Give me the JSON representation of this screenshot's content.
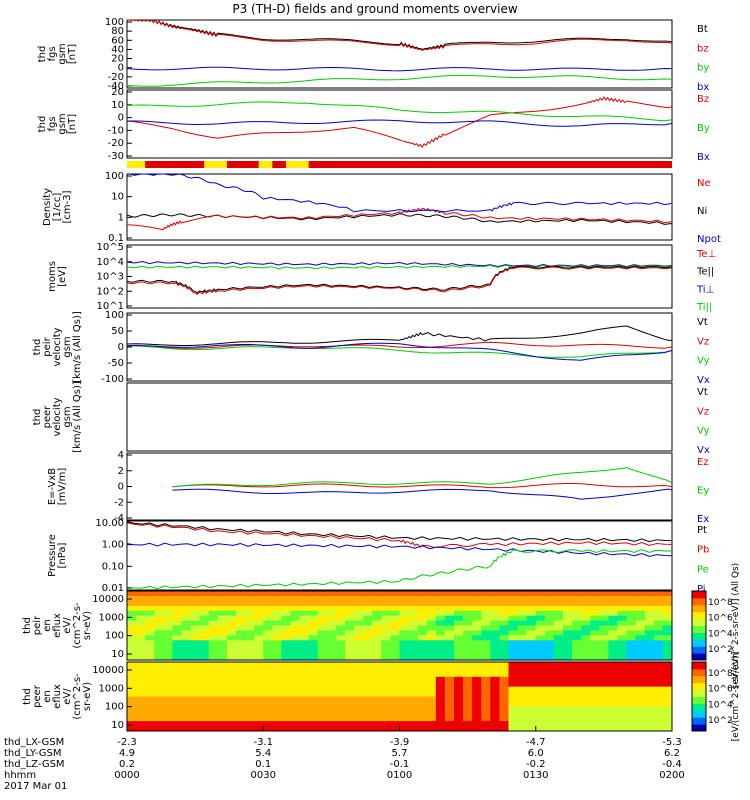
{
  "title": "P3 (TH-D) fields and ground moments overview",
  "colors": {
    "black": "#000000",
    "red": "#e00000",
    "green": "#00cc00",
    "blue": "#0000cc",
    "yellow": "#ffee00"
  },
  "date_label": "2017 Mar 01",
  "chart_data": [
    {
      "type": "line",
      "ylabel": [
        "thd",
        "fgs",
        "gsm",
        "[nT]"
      ],
      "yticks": [
        "100",
        "80",
        "60",
        "40",
        "20",
        "0",
        "-20",
        "-40"
      ],
      "ylim": [
        -40,
        100
      ],
      "legend": [
        {
          "name": "Bt",
          "color": "black"
        },
        {
          "name": "bz",
          "color": "red"
        },
        {
          "name": "by",
          "color": "green"
        },
        {
          "name": "bx",
          "color": "blue"
        }
      ],
      "series": [
        {
          "name": "Bt",
          "color": "black",
          "x": [
            0,
            5,
            10,
            15,
            20,
            30,
            40,
            50,
            60,
            65,
            70,
            80,
            90,
            100,
            110,
            120
          ],
          "y": [
            100,
            100,
            88,
            80,
            70,
            62,
            60,
            57,
            52,
            40,
            48,
            55,
            56,
            60,
            62,
            55
          ]
        },
        {
          "name": "bz",
          "color": "red",
          "x": [
            0,
            5,
            10,
            15,
            20,
            30,
            40,
            50,
            60,
            65,
            70,
            80,
            90,
            100,
            110,
            120
          ],
          "y": [
            100,
            100,
            86,
            78,
            68,
            60,
            57,
            55,
            50,
            38,
            45,
            52,
            52,
            58,
            60,
            52
          ]
        },
        {
          "name": "by",
          "color": "green",
          "x": [
            0,
            20,
            40,
            60,
            80,
            100,
            120
          ],
          "y": [
            -35,
            -30,
            -25,
            -20,
            -15,
            -18,
            -22
          ]
        },
        {
          "name": "bx",
          "color": "blue",
          "x": [
            0,
            20,
            40,
            60,
            80,
            100,
            120
          ],
          "y": [
            0,
            0,
            0,
            -2,
            0,
            -2,
            0
          ]
        }
      ]
    },
    {
      "type": "line",
      "ylabel": [
        "thd",
        "fgs",
        "gsm",
        "[nT]"
      ],
      "yticks": [
        "20",
        "10",
        "0",
        "-10",
        "-20",
        "-30"
      ],
      "ylim": [
        -35,
        22
      ],
      "legend": [
        {
          "name": "Bz",
          "color": "red"
        },
        {
          "name": "By",
          "color": "green"
        },
        {
          "name": "Bx",
          "color": "blue"
        }
      ],
      "series": [
        {
          "name": "Bz",
          "color": "red",
          "x": [
            0,
            10,
            20,
            30,
            40,
            50,
            60,
            65,
            70,
            80,
            90,
            100,
            105,
            110,
            120
          ],
          "y": [
            -5,
            -10,
            -18,
            -15,
            -12,
            -10,
            -20,
            -25,
            -15,
            0,
            5,
            10,
            15,
            12,
            8
          ]
        },
        {
          "name": "By",
          "color": "green",
          "x": [
            0,
            20,
            40,
            60,
            80,
            100,
            120
          ],
          "y": [
            8,
            10,
            12,
            5,
            3,
            0,
            -3
          ]
        },
        {
          "name": "Bx",
          "color": "blue",
          "x": [
            0,
            20,
            40,
            60,
            80,
            100,
            120
          ],
          "y": [
            -5,
            -6,
            -5,
            -4,
            -5,
            -8,
            -6
          ]
        }
      ]
    },
    {
      "type": "line",
      "ylabel": [
        "Density",
        "[1/cc]",
        "[cm-3]"
      ],
      "yticks": [
        "100",
        "10",
        "1",
        "0.1"
      ],
      "ylim": [
        0.05,
        200
      ],
      "log": true,
      "legend": [
        {
          "name": "Ne",
          "color": "red"
        },
        {
          "name": "Ni",
          "color": "black"
        },
        {
          "name": "Npot",
          "color": "blue"
        }
      ],
      "series": [
        {
          "name": "Ni",
          "color": "black",
          "x": [
            0,
            10,
            20,
            40,
            60,
            70,
            80,
            100,
            120
          ],
          "y": [
            1,
            1.2,
            1,
            0.7,
            1.2,
            1.0,
            0.5,
            0.6,
            0.4
          ]
        },
        {
          "name": "Ne",
          "color": "red",
          "x": [
            0,
            8,
            12,
            20,
            40,
            60,
            65,
            70,
            80,
            100,
            120
          ],
          "y": [
            0.3,
            0.2,
            0.5,
            1,
            0.8,
            1.5,
            2.5,
            1.5,
            0.8,
            0.7,
            0.5
          ]
        },
        {
          "name": "Npot",
          "color": "blue",
          "x": [
            0,
            10,
            20,
            30,
            50,
            80,
            85,
            100,
            120
          ],
          "y": [
            200,
            200,
            50,
            10,
            2,
            2,
            5,
            5,
            5
          ]
        }
      ]
    },
    {
      "type": "line",
      "ylabel": [
        "moms",
        "[eV]"
      ],
      "yticks": [
        "10^5",
        "10^4",
        "10^3",
        "10^2",
        "10^1"
      ],
      "ylim": [
        10,
        100000
      ],
      "log": true,
      "legend": [
        {
          "name": "Te⊥",
          "color": "red"
        },
        {
          "name": "Te||",
          "color": "black"
        },
        {
          "name": "Ti⊥",
          "color": "blue"
        },
        {
          "name": "Ti||",
          "color": "green"
        }
      ],
      "series": [
        {
          "name": "Ti⊥",
          "color": "blue",
          "x": [
            0,
            20,
            40,
            60,
            80,
            100,
            120
          ],
          "y": [
            8000,
            7000,
            6000,
            7000,
            5000,
            5000,
            5000
          ]
        },
        {
          "name": "Ti||",
          "color": "green",
          "x": [
            0,
            20,
            40,
            60,
            80,
            100,
            120
          ],
          "y": [
            4000,
            4000,
            3500,
            4000,
            4500,
            4500,
            4500
          ]
        },
        {
          "name": "Te||",
          "color": "black",
          "x": [
            0,
            10,
            15,
            20,
            40,
            60,
            70,
            80,
            85,
            100,
            120
          ],
          "y": [
            500,
            500,
            100,
            150,
            300,
            200,
            150,
            300,
            4000,
            4000,
            4000
          ]
        },
        {
          "name": "Te⊥",
          "color": "red",
          "x": [
            0,
            10,
            15,
            20,
            40,
            60,
            70,
            80,
            85,
            100,
            120
          ],
          "y": [
            400,
            400,
            80,
            120,
            250,
            180,
            120,
            250,
            3500,
            3500,
            3500
          ]
        }
      ]
    },
    {
      "type": "line",
      "ylabel": [
        "thd",
        "peir",
        "velocity",
        "gsm",
        "[km/s (All Qs)]"
      ],
      "yticks": [
        "100",
        "50",
        "0",
        "-50",
        "-100"
      ],
      "ylim": [
        -100,
        100
      ],
      "legend": [
        {
          "name": "Vt",
          "color": "black"
        },
        {
          "name": "Vz",
          "color": "red"
        },
        {
          "name": "Vy",
          "color": "green"
        },
        {
          "name": "Vx",
          "color": "blue"
        }
      ],
      "series": [
        {
          "name": "Vt",
          "color": "black",
          "x": [
            0,
            20,
            40,
            60,
            65,
            80,
            100,
            110,
            120
          ],
          "y": [
            5,
            10,
            15,
            20,
            40,
            20,
            40,
            60,
            20
          ]
        },
        {
          "name": "Vz",
          "color": "red",
          "x": [
            0,
            20,
            40,
            60,
            80,
            100,
            120
          ],
          "y": [
            0,
            0,
            5,
            0,
            10,
            5,
            0
          ]
        },
        {
          "name": "Vy",
          "color": "green",
          "x": [
            0,
            20,
            40,
            60,
            80,
            100,
            120
          ],
          "y": [
            0,
            -5,
            0,
            -10,
            -20,
            -30,
            -10
          ]
        },
        {
          "name": "Vx",
          "color": "blue",
          "x": [
            0,
            20,
            40,
            60,
            80,
            100,
            120
          ],
          "y": [
            0,
            5,
            0,
            10,
            -10,
            -40,
            -10
          ]
        }
      ]
    },
    {
      "type": "line",
      "ylabel": [
        "thd",
        "peer",
        "velocity",
        "gsm",
        "[km/s (All Qs)]"
      ],
      "yticks": [],
      "ylim": [
        -100,
        100
      ],
      "legend": [
        {
          "name": "Vt",
          "color": "black"
        },
        {
          "name": "Vz",
          "color": "red"
        },
        {
          "name": "Vy",
          "color": "green"
        },
        {
          "name": "Vx",
          "color": "blue"
        }
      ],
      "series": []
    },
    {
      "type": "line",
      "ylabel": [
        "E=-VxB",
        "[mV/m]"
      ],
      "yticks": [
        "4",
        "2",
        "0",
        "-2",
        "-4"
      ],
      "ylim": [
        -5,
        5
      ],
      "legend": [
        {
          "name": "Ez",
          "color": "red"
        },
        {
          "name": "Ey",
          "color": "green"
        },
        {
          "name": "Ex",
          "color": "blue"
        }
      ],
      "series": [
        {
          "name": "Ez",
          "color": "red",
          "x": [
            10,
            40,
            80,
            100,
            120
          ],
          "y": [
            0,
            0.2,
            0,
            0.3,
            0
          ]
        },
        {
          "name": "Ey",
          "color": "green",
          "x": [
            10,
            40,
            80,
            100,
            110,
            120
          ],
          "y": [
            0,
            0.5,
            0.5,
            2,
            3,
            0.5
          ]
        },
        {
          "name": "Ex",
          "color": "blue",
          "x": [
            10,
            40,
            80,
            100,
            110,
            120
          ],
          "y": [
            -0.5,
            -1,
            -0.5,
            -2,
            -1,
            -0.5
          ]
        }
      ]
    },
    {
      "type": "line",
      "ylabel": [
        "Pressure",
        "[nPa]"
      ],
      "yticks": [
        "10.00",
        "1.00",
        "0.10",
        "0.01"
      ],
      "ylim": [
        0.008,
        12
      ],
      "log": true,
      "legend": [
        {
          "name": "Pt",
          "color": "black"
        },
        {
          "name": "Pb",
          "color": "red"
        },
        {
          "name": "Pe",
          "color": "green"
        },
        {
          "name": "Pi",
          "color": "blue"
        }
      ],
      "series": [
        {
          "name": "Pt",
          "color": "black",
          "x": [
            0,
            20,
            40,
            60,
            80,
            100,
            120
          ],
          "y": [
            10,
            5,
            3,
            2,
            1.8,
            1.7,
            1.5
          ]
        },
        {
          "name": "Pb",
          "color": "red",
          "x": [
            0,
            20,
            40,
            60,
            65,
            80,
            100,
            120
          ],
          "y": [
            9,
            4,
            2.5,
            1.5,
            0.8,
            1,
            1.2,
            1
          ]
        },
        {
          "name": "Pi",
          "color": "blue",
          "x": [
            0,
            20,
            40,
            60,
            80,
            100,
            120
          ],
          "y": [
            1,
            1,
            0.9,
            0.8,
            0.6,
            0.4,
            0.3
          ]
        },
        {
          "name": "Pe",
          "color": "green",
          "x": [
            0,
            20,
            40,
            60,
            70,
            80,
            85,
            100,
            120
          ],
          "y": [
            0.01,
            0.012,
            0.015,
            0.02,
            0.05,
            0.1,
            0.5,
            0.5,
            0.5
          ]
        }
      ]
    },
    {
      "type": "heatmap",
      "ylabel": [
        "thd",
        "peir",
        "en",
        "eflux",
        "eV/",
        "(cm^2-s-",
        "sr-eV)"
      ],
      "yticks": [
        "10000",
        "1000",
        "100",
        "10"
      ],
      "colorbar_ticks": [
        "10^8",
        "10^6",
        "10^4",
        "10^2"
      ],
      "colorbar_label": "[eV/(cm^2-s-sr-eV)] (All Qs)"
    },
    {
      "type": "heatmap",
      "ylabel": [
        "thd",
        "peer",
        "en",
        "eflux",
        "eV/",
        "(cm^2-s-",
        "sr-eV)"
      ],
      "yticks": [
        "10000",
        "1000",
        "100",
        "10"
      ],
      "colorbar_ticks": [
        "10^8",
        "10^6",
        "10^4",
        "10^2"
      ],
      "colorbar_label": "[eV/(cm^2-s-sr-eV)]"
    }
  ],
  "xaxis": {
    "row_labels": [
      "thd_LX-GSM",
      "thd_LY-GSM",
      "thd_LZ-GSM",
      "hhmm"
    ],
    "ticks": [
      {
        "x": 0,
        "vals": [
          "-2.3",
          "4.9",
          "0.2",
          "0000"
        ]
      },
      {
        "x": 30,
        "vals": [
          "-3.1",
          "5.4",
          "0.1",
          "0030"
        ]
      },
      {
        "x": 60,
        "vals": [
          "-3.9",
          "5.7",
          "-0.1",
          "0100"
        ]
      },
      {
        "x": 90,
        "vals": [
          "-4.7",
          "6.0",
          "-0.2",
          "0130"
        ]
      },
      {
        "x": 120,
        "vals": [
          "-5.3",
          "6.2",
          "-0.4",
          "0200"
        ]
      }
    ]
  }
}
